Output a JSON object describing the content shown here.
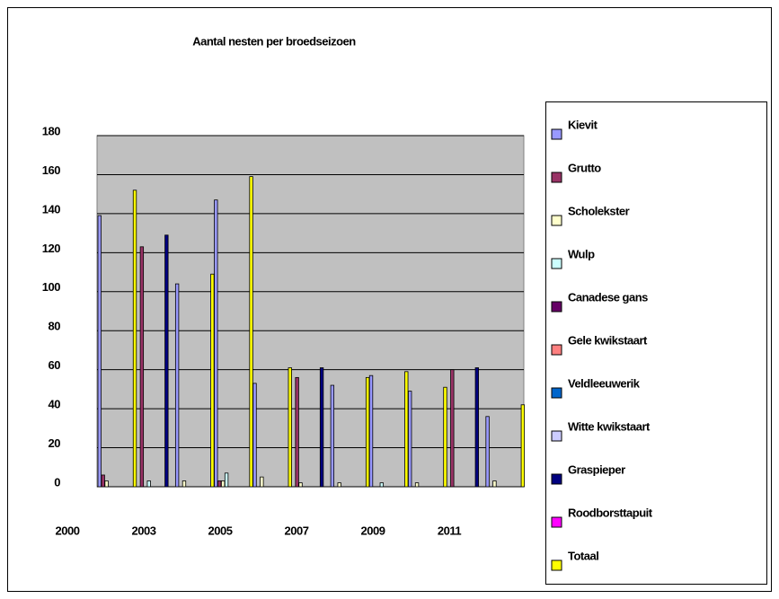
{
  "chart_data": {
    "type": "bar",
    "title": "Aantal nesten per broedseizoen",
    "categories": [
      null,
      null,
      null,
      null,
      null,
      null,
      null,
      null,
      null,
      null,
      null
    ],
    "xtick_labels": [
      "2000",
      "2003",
      "2005",
      "2007",
      "2009",
      "2011"
    ],
    "ylim": [
      0,
      180
    ],
    "yticks": [
      0,
      20,
      40,
      60,
      80,
      100,
      120,
      140,
      160,
      180
    ],
    "grid": true,
    "legend": "right",
    "series": [
      {
        "name": "Kievit",
        "color": "#9999ff",
        "values": [
          139,
          null,
          104,
          147,
          53,
          null,
          52,
          57,
          49,
          null,
          36
        ]
      },
      {
        "name": "Grutto",
        "color": "#993366",
        "values": [
          6,
          123,
          null,
          3,
          null,
          56,
          null,
          null,
          null,
          60,
          null
        ]
      },
      {
        "name": "Scholekster",
        "color": "#ffffcc",
        "values": [
          3,
          null,
          3,
          3,
          5,
          2,
          2,
          null,
          2,
          null,
          3
        ]
      },
      {
        "name": "Wulp",
        "color": "#ccffff",
        "values": [
          null,
          3,
          null,
          7,
          null,
          null,
          null,
          2,
          null,
          null,
          null
        ]
      },
      {
        "name": "Canadese gans",
        "color": "#660066",
        "values": [
          null,
          null,
          null,
          null,
          null,
          null,
          null,
          null,
          null,
          null,
          null
        ]
      },
      {
        "name": "Gele kwikstaart",
        "color": "#ff8080",
        "values": [
          null,
          null,
          null,
          null,
          null,
          null,
          null,
          null,
          null,
          null,
          null
        ]
      },
      {
        "name": "Veldleeuwerik",
        "color": "#0066cc",
        "values": [
          null,
          null,
          null,
          null,
          null,
          null,
          null,
          null,
          null,
          null,
          null
        ]
      },
      {
        "name": "Witte kwikstaart",
        "color": "#ccccff",
        "values": [
          null,
          null,
          null,
          null,
          null,
          null,
          null,
          null,
          null,
          null,
          null
        ]
      },
      {
        "name": "Graspieper",
        "color": "#000080",
        "values": [
          null,
          129,
          null,
          null,
          null,
          61,
          null,
          null,
          null,
          61,
          null
        ]
      },
      {
        "name": "Roodborsttapuit",
        "color": "#ff00ff",
        "values": [
          null,
          null,
          null,
          null,
          null,
          null,
          null,
          null,
          null,
          null,
          null
        ]
      },
      {
        "name": "Totaal",
        "color": "#ffff00",
        "values": [
          152,
          null,
          109,
          159,
          61,
          null,
          56,
          59,
          51,
          null,
          42
        ]
      }
    ]
  }
}
